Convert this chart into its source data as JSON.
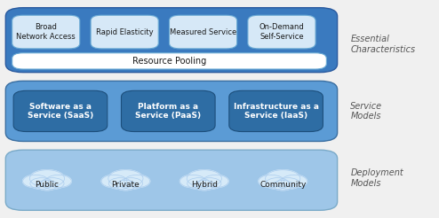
{
  "fig_width": 4.94,
  "fig_height": 2.46,
  "dpi": 100,
  "bg_color": "#f0f0f0",
  "section1": {
    "label": "Essential\nCharacteristics",
    "outer_bg": "#3a7abf",
    "inner_box_color": "#d6e8f7",
    "inner_box_edge": "#6aaad4",
    "resource_pooling_bg": "#ffffff",
    "resource_pooling_edge": "#6aaad4",
    "items": [
      "Broad\nNetwork Access",
      "Rapid Elasticity",
      "Measured Service",
      "On-Demand\nSelf-Service"
    ],
    "resource_pooling_text": "Resource Pooling"
  },
  "section2": {
    "label": "Service\nModels",
    "outer_bg": "#5b9bd5",
    "inner_box_color": "#2e6da4",
    "inner_box_edge": "#1d4f7c",
    "items": [
      "Software as a\nService (SaaS)",
      "Platform as a\nService (PaaS)",
      "Infrastructure as a\nService (IaaS)"
    ]
  },
  "section3": {
    "label": "Deployment\nModels",
    "outer_bg": "#9ec6e8",
    "cloud_color": "#d6eaf8",
    "cloud_edge": "#aaccee",
    "items": [
      "Public",
      "Private",
      "Hybrid",
      "Community"
    ]
  },
  "label_fontsize": 7,
  "label_style": "italic",
  "label_color": "#555555",
  "item_fontsize": 6,
  "item_fontsize_s2": 6.5
}
